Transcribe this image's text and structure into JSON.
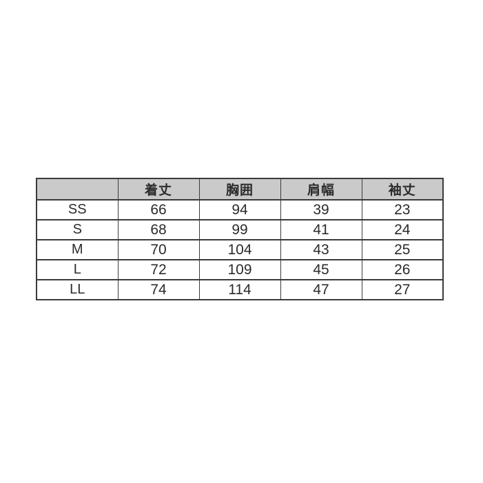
{
  "chart_data": {
    "type": "table",
    "title": "",
    "columns": [
      "",
      "着丈",
      "胸囲",
      "肩幅",
      "袖丈"
    ],
    "column_meanings": [
      "size",
      "body-length",
      "chest",
      "shoulder-width",
      "sleeve-length"
    ],
    "rows": [
      {
        "label": "SS",
        "values": [
          "66",
          "94",
          "39",
          "23"
        ]
      },
      {
        "label": "S",
        "values": [
          "68",
          "99",
          "41",
          "24"
        ]
      },
      {
        "label": "M",
        "values": [
          "70",
          "104",
          "43",
          "25"
        ]
      },
      {
        "label": "L",
        "values": [
          "72",
          "109",
          "45",
          "26"
        ]
      },
      {
        "label": "LL",
        "values": [
          "74",
          "114",
          "47",
          "27"
        ]
      }
    ],
    "layout": {
      "legend_position": "none",
      "grid": "all-cell-borders"
    }
  },
  "colors": {
    "page_background": "#ffffff",
    "header_background": "#cacaca",
    "border": "#3a3a3a",
    "text": "#2b2b2b"
  }
}
